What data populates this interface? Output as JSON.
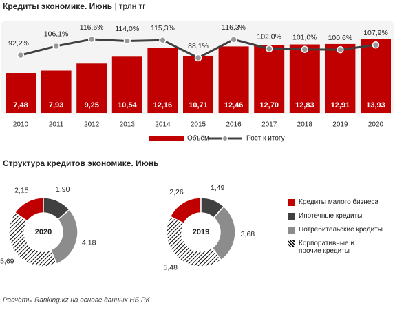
{
  "chart_data": [
    {
      "type": "bar",
      "title": "Кредиты экономике. Июнь",
      "subtitle": "трлн тг",
      "categories": [
        "2010",
        "2011",
        "2012",
        "2013",
        "2014",
        "2015",
        "2016",
        "2017",
        "2018",
        "2019",
        "2020"
      ],
      "series": [
        {
          "name": "Объём",
          "type": "bar",
          "color": "#c00000",
          "values": [
            7.48,
            7.93,
            9.25,
            10.54,
            12.16,
            10.71,
            12.46,
            12.7,
            12.83,
            12.91,
            13.93
          ],
          "value_labels": [
            "7,48",
            "7,93",
            "9,25",
            "10,54",
            "12,16",
            "10,71",
            "12,46",
            "12,70",
            "12,83",
            "12,91",
            "13,93"
          ]
        },
        {
          "name": "Рост к итогу",
          "type": "line",
          "color": "#404040",
          "axis": "y2",
          "values": [
            92.2,
            106.1,
            116.6,
            114.0,
            115.3,
            88.1,
            116.3,
            102.0,
            101.0,
            100.6,
            107.9
          ],
          "value_labels": [
            "92,2%",
            "106,1%",
            "116,6%",
            "114,0%",
            "115,3%",
            "88,1%",
            "116,3%",
            "102,0%",
            "101,0%",
            "100,6%",
            "107,9%"
          ]
        }
      ]
    },
    {
      "type": "donut",
      "title": "Структура кредитов экономике. Июнь",
      "label": "2020",
      "categories": [
        "Кредиты малого бизнеса",
        "Ипотечные кредиты",
        "Потребительские кредиты",
        "Корпоративные и прочие кредиты"
      ],
      "colors": [
        "#c00000",
        "#404040",
        "#8c8c8c",
        "#000000"
      ],
      "hatch": [
        false,
        false,
        false,
        true
      ],
      "values": [
        2.15,
        1.9,
        4.18,
        5.69
      ],
      "value_labels": [
        "2,15",
        "1,90",
        "4,18",
        "5,69"
      ]
    },
    {
      "type": "donut",
      "label": "2019",
      "colors": [
        "#c00000",
        "#404040",
        "#8c8c8c",
        "#000000"
      ],
      "hatch": [
        false,
        false,
        false,
        true
      ],
      "values": [
        2.26,
        1.49,
        3.68,
        5.48
      ],
      "value_labels": [
        "2,26",
        "1,49",
        "3,68",
        "5,48"
      ]
    }
  ],
  "source": "Расчёты Ranking.kz на основе данных  НБ РК"
}
